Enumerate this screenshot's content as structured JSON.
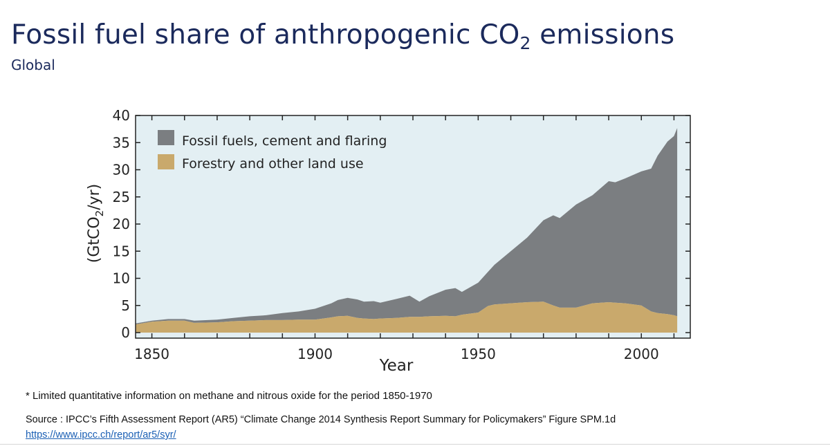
{
  "slide": {
    "title_main": "Fossil fuel share of anthropogenic CO",
    "title_sub": "2",
    "title_end": " emissions",
    "subtitle": "Global",
    "note": "* Limited quantitative information on methane and nitrous oxide for the period 1850-1970",
    "source": "Source : IPCC’s Fifth Assessment Report (AR5) “Climate Change 2014 Synthesis Report Summary for Policymakers” Figure SPM.1d",
    "link": "https://www.ipcc.ch/report/ar5/syr/"
  },
  "chart_data": {
    "type": "area",
    "stacked": true,
    "xlabel": "Year",
    "ylabel_pre": "(GtCO",
    "ylabel_sub": "2",
    "ylabel_post": "/yr)",
    "xlim": [
      1845,
      2015
    ],
    "ylim": [
      0,
      40
    ],
    "xticks": [
      1850,
      1900,
      1950,
      2000
    ],
    "yticks": [
      0,
      5,
      10,
      15,
      20,
      25,
      30,
      35,
      40
    ],
    "grid": false,
    "legend_position": "top-left",
    "background_color": "#e3eff3",
    "x": [
      1845,
      1850,
      1855,
      1860,
      1863,
      1870,
      1875,
      1880,
      1885,
      1890,
      1895,
      1900,
      1905,
      1907,
      1910,
      1913,
      1915,
      1918,
      1920,
      1925,
      1929,
      1932,
      1935,
      1940,
      1943,
      1945,
      1950,
      1953,
      1955,
      1960,
      1965,
      1970,
      1973,
      1975,
      1980,
      1985,
      1990,
      1992,
      1995,
      2000,
      2003,
      2005,
      2008,
      2010,
      2011
    ],
    "series": [
      {
        "name": "Fossil fuels, cement and flaring",
        "color": "#7b7e81",
        "values": [
          0.2,
          0.2,
          0.3,
          0.3,
          0.4,
          0.5,
          0.6,
          0.8,
          0.9,
          1.3,
          1.5,
          2.0,
          2.6,
          3.0,
          3.3,
          3.4,
          3.1,
          3.3,
          2.9,
          3.5,
          3.9,
          2.8,
          3.7,
          4.8,
          5.2,
          4.2,
          5.5,
          6.3,
          7.3,
          9.6,
          11.9,
          15.0,
          16.6,
          16.5,
          19.0,
          19.9,
          22.3,
          22.2,
          23.0,
          24.7,
          26.3,
          29.0,
          31.8,
          33.0,
          34.7
        ]
      },
      {
        "name": "Forestry and other land use",
        "color": "#c9a96c",
        "values": [
          1.5,
          2.0,
          2.2,
          2.2,
          1.8,
          1.9,
          2.1,
          2.2,
          2.3,
          2.3,
          2.4,
          2.4,
          2.8,
          3.0,
          3.1,
          2.7,
          2.6,
          2.5,
          2.6,
          2.7,
          2.9,
          2.9,
          3.0,
          3.1,
          3.0,
          3.3,
          3.7,
          4.9,
          5.2,
          5.4,
          5.6,
          5.7,
          5.0,
          4.6,
          4.6,
          5.4,
          5.6,
          5.5,
          5.4,
          5.0,
          3.9,
          3.6,
          3.4,
          3.2,
          3.0
        ]
      }
    ]
  }
}
